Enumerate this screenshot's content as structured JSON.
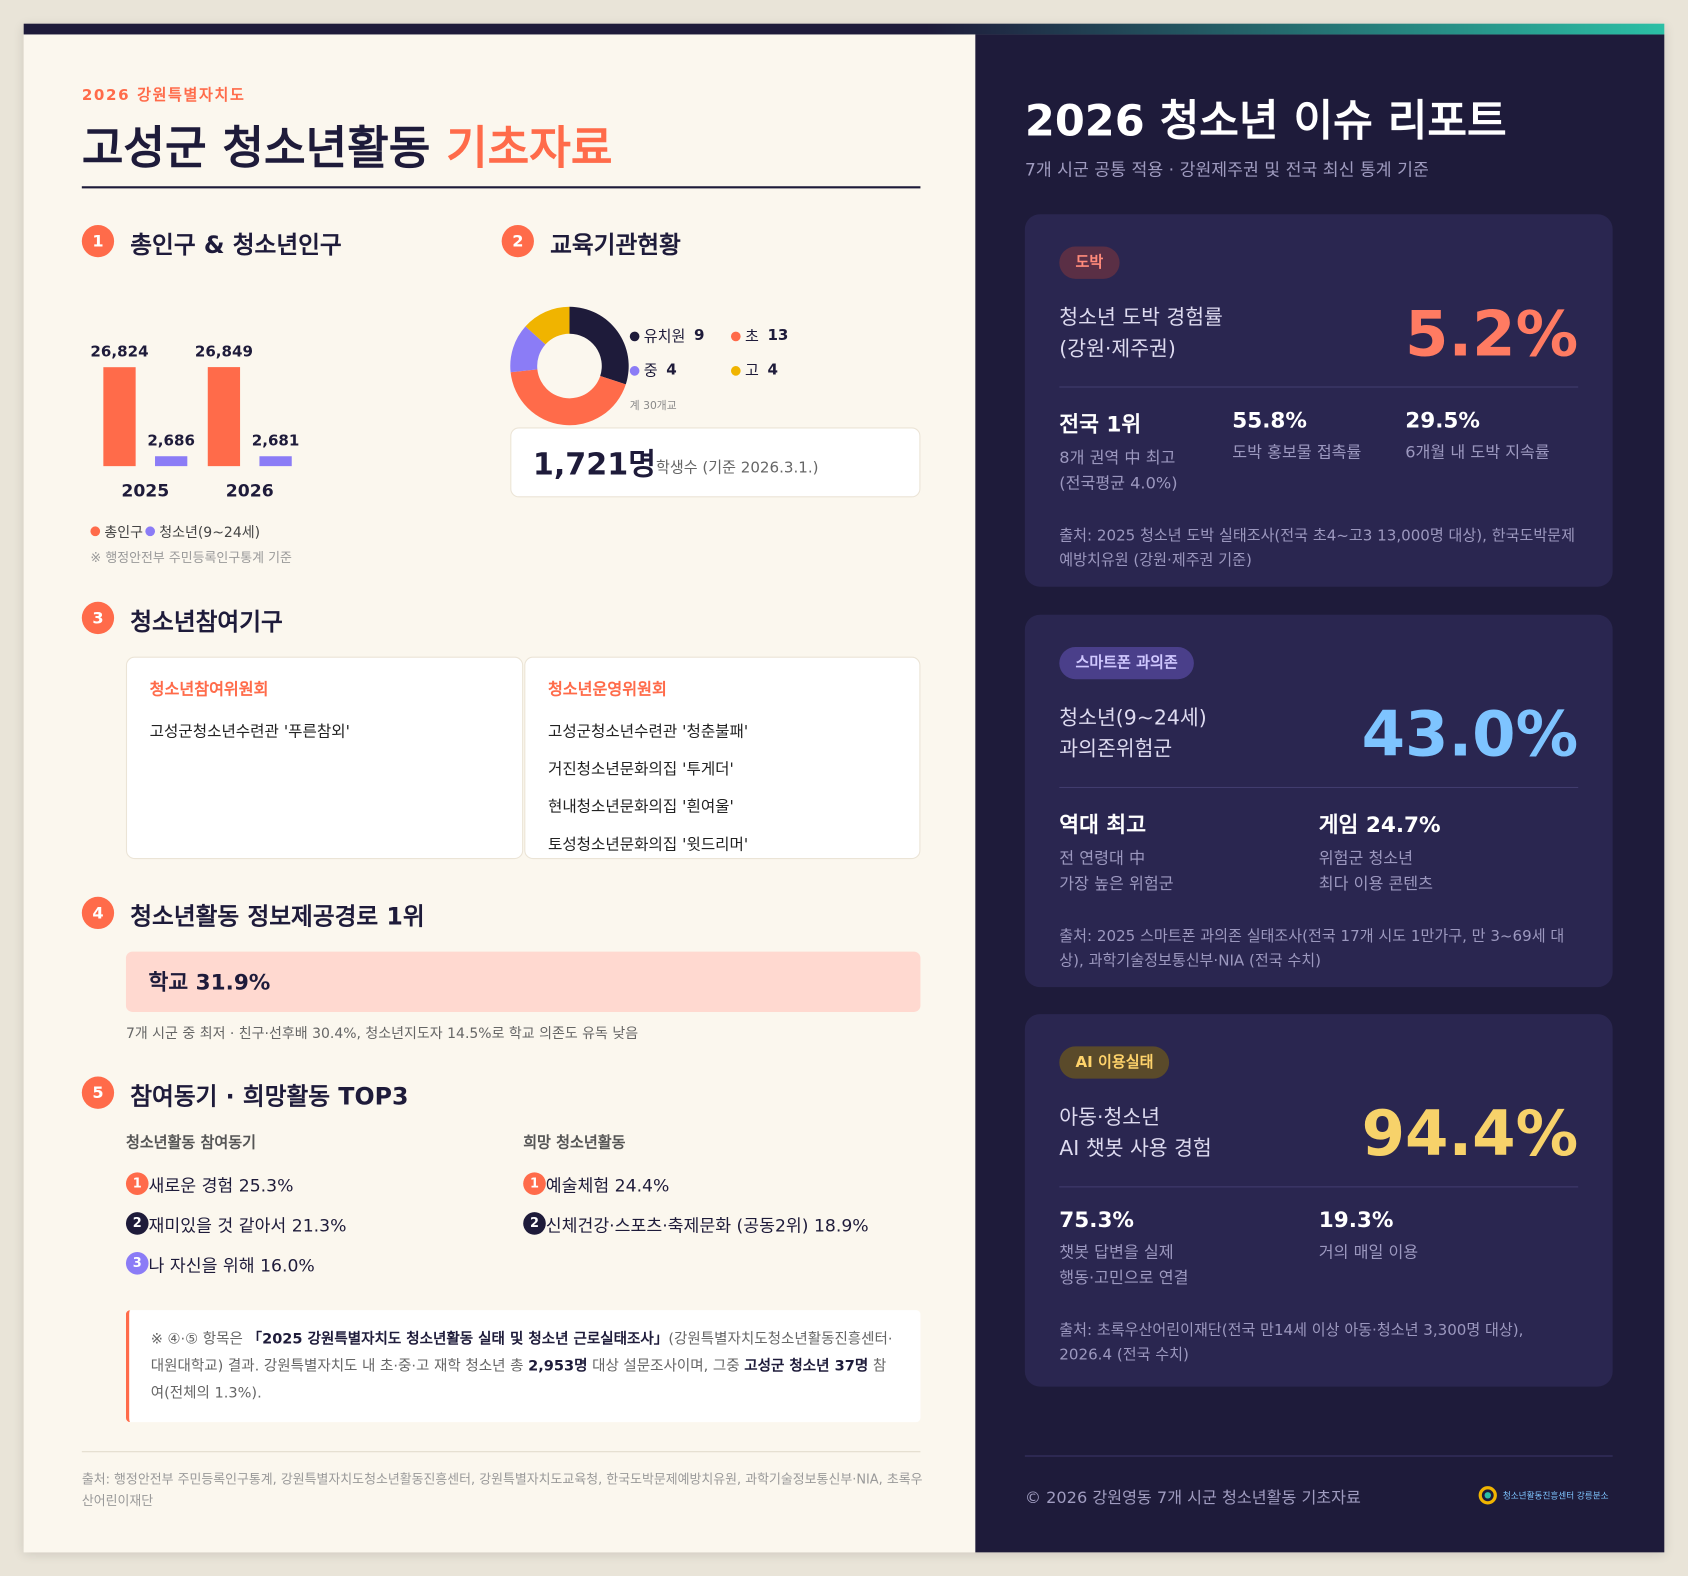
{
  "header": {
    "kicker": "2026 강원특별자치도",
    "title": "고성군 청소년활동",
    "title_accent": "기초자료"
  },
  "population": {
    "number": "1",
    "title": "총인구 & 청소년인구",
    "categories": [
      "2025",
      "2026"
    ],
    "series": [
      {
        "name": "총인구",
        "color": "#ff6b4a",
        "values": [
          26824,
          26849
        ],
        "value_labels": [
          "26,824",
          "26,849"
        ]
      },
      {
        "name": "청소년(9~24세)",
        "color": "#8b7cf6",
        "values": [
          2686,
          2681
        ],
        "value_labels": [
          "2,686",
          "2,681"
        ]
      }
    ],
    "note": "※ 행정안전부 주민등록인구통계 기준"
  },
  "schools": {
    "number": "2",
    "title": "교육기관현황",
    "categories": [
      "유치원",
      "초",
      "중",
      "고"
    ],
    "values": [
      9,
      13,
      4,
      4
    ],
    "colors": [
      "#1e1b3a",
      "#ff6b4a",
      "#8b7cf6",
      "#f0b400"
    ],
    "total_label": "계 30개교",
    "students": "1,721명",
    "students_caption": "학생수 (기준 2026.3.1.)"
  },
  "bodies": {
    "number": "3",
    "title": "청소년참여기구",
    "cards": [
      {
        "title": "청소년참여위원회",
        "items": [
          "고성군청소년수련관 '푸른참외'"
        ]
      },
      {
        "title": "청소년운영위원회",
        "items": [
          "고성군청소년수련관 '청춘불패'",
          "거진청소년문화의집 '투게더'",
          "현내청소년문화의집 '흰여울'",
          "토성청소년문화의집 '윗드리머'"
        ]
      }
    ]
  },
  "info_route": {
    "number": "4",
    "title": "청소년활동 정보제공경로 1위",
    "highlight": "학교 31.9%",
    "note": "7개 시군 중 최저 · 친구·선후배 30.4%, 청소년지도자 14.5%로 학교 의존도 유독 낮음"
  },
  "top3": {
    "number": "5",
    "title": "참여동기 · 희망활동 TOP3",
    "lists": [
      {
        "title": "청소년활동 참여동기",
        "items": [
          {
            "rank": "1",
            "text": "새로운 경험 25.3%"
          },
          {
            "rank": "2",
            "text": "재미있을 것 같아서 21.3%"
          },
          {
            "rank": "3",
            "text": "나 자신을 위해 16.0%"
          }
        ]
      },
      {
        "title": "희망 청소년활동",
        "items": [
          {
            "rank": "1",
            "text": "예술체험 24.4%"
          },
          {
            "rank": "2",
            "text": "신체건강·스포츠·축제문화 (공동2위) 18.9%"
          }
        ]
      }
    ]
  },
  "survey_note": {
    "segments": [
      {
        "text": "※ ④·⑤ 항목은 "
      },
      {
        "text": "「2025 강원특별자치도 청소년활동 실태 및 청소년 근로실태조사」",
        "bold": true
      },
      {
        "text": "(강원특별자치도청소년활동진흥센터·대원대학교) 결과. 강원특별자치도 내 초·중·고 재학 청소년 총 "
      },
      {
        "text": "2,953명",
        "bold": true
      },
      {
        "text": " 대상 설문조사이며, 그중 "
      },
      {
        "text": "고성군 청소년 37명",
        "bold": true
      },
      {
        "text": " 참여(전체의 1.3%)."
      }
    ]
  },
  "left_footer": "출처: 행정안전부 주민등록인구통계, 강원특별자치도청소년활동진흥센터, 강원특별자치도교육청, 한국도박문제예방치유원, 과학기술정보통신부·NIA, 초록우산어린이재단",
  "report": {
    "title": "2026 청소년 이슈 리포트",
    "subtitle": "7개 시군 공통 적용 · 강원제주권 및 전국 최신 통계 기준",
    "cards": [
      {
        "tag": "도박",
        "label": [
          "청소년 도박 경험률",
          "(강원·제주권)"
        ],
        "value": "5.2%",
        "stats": [
          {
            "head": "전국 1위",
            "desc": [
              "8개 권역 中 최고",
              "(전국평균 4.0%)"
            ]
          },
          {
            "head": "55.8%",
            "desc": [
              "도박 홍보물 접촉률"
            ]
          },
          {
            "head": "29.5%",
            "desc": [
              "6개월 내 도박 지속률"
            ]
          }
        ],
        "source": "출처: 2025 청소년 도박 실태조사(전국 초4~고3 13,000명 대상), 한국도박문제예방치유원 (강원·제주권 기준)"
      },
      {
        "tag": "스마트폰 과의존",
        "label": [
          "청소년(9~24세)",
          "과의존위험군"
        ],
        "value": "43.0%",
        "stats": [
          {
            "head": "역대 최고",
            "desc": [
              "전 연령대 中",
              "가장 높은 위험군"
            ]
          },
          {
            "head": "게임 24.7%",
            "desc": [
              "위험군 청소년",
              "최다 이용 콘텐츠"
            ]
          }
        ],
        "source": "출처: 2025 스마트폰 과의존 실태조사(전국 17개 시도 1만가구, 만 3~69세 대상), 과학기술정보통신부·NIA (전국 수치)"
      },
      {
        "tag": "AI 이용실태",
        "label": [
          "아동·청소년",
          "AI 챗봇 사용 경험"
        ],
        "value": "94.4%",
        "stats": [
          {
            "head": "75.3%",
            "desc": [
              "챗봇 답변을 실제",
              "행동·고민으로 연결"
            ]
          },
          {
            "head": "19.3%",
            "desc": [
              "거의 매일 이용"
            ]
          }
        ],
        "source": "출처: 초록우산어린이재단(전국 만14세 이상 아동·청소년 3,300명 대상), 2026.4 (전국 수치)"
      }
    ]
  },
  "right_footer": "© 2026 강원영동 7개 시군 청소년활동 기초자료",
  "logo": "청소년활동진흥센터 강릉분소"
}
